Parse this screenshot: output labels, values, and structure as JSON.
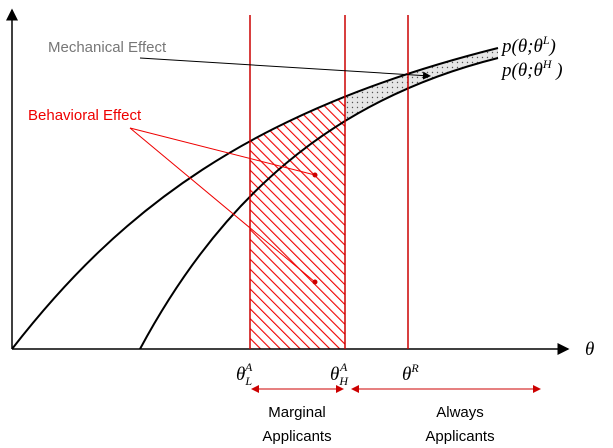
{
  "annotations": {
    "mechanical_effect": "Mechanical Effect",
    "behavioral_effect": "Behavioral Effect"
  },
  "curve_labels": [
    {
      "text": "p(θ;θ",
      "sup": "L",
      "close": ")"
    },
    {
      "text": "p(θ;θ",
      "sup": "H",
      "close": " )"
    }
  ],
  "axis_label": "θ",
  "thresholds": [
    {
      "base": "θ",
      "sub": "L",
      "sup": "A"
    },
    {
      "base": "θ",
      "sub": "H",
      "sup": "A"
    },
    {
      "base": "θ",
      "sup": "R"
    }
  ],
  "groups": [
    {
      "line1": "Marginal",
      "line2": "Applicants"
    },
    {
      "line1": "Always",
      "line2": "Applicants"
    }
  ]
}
